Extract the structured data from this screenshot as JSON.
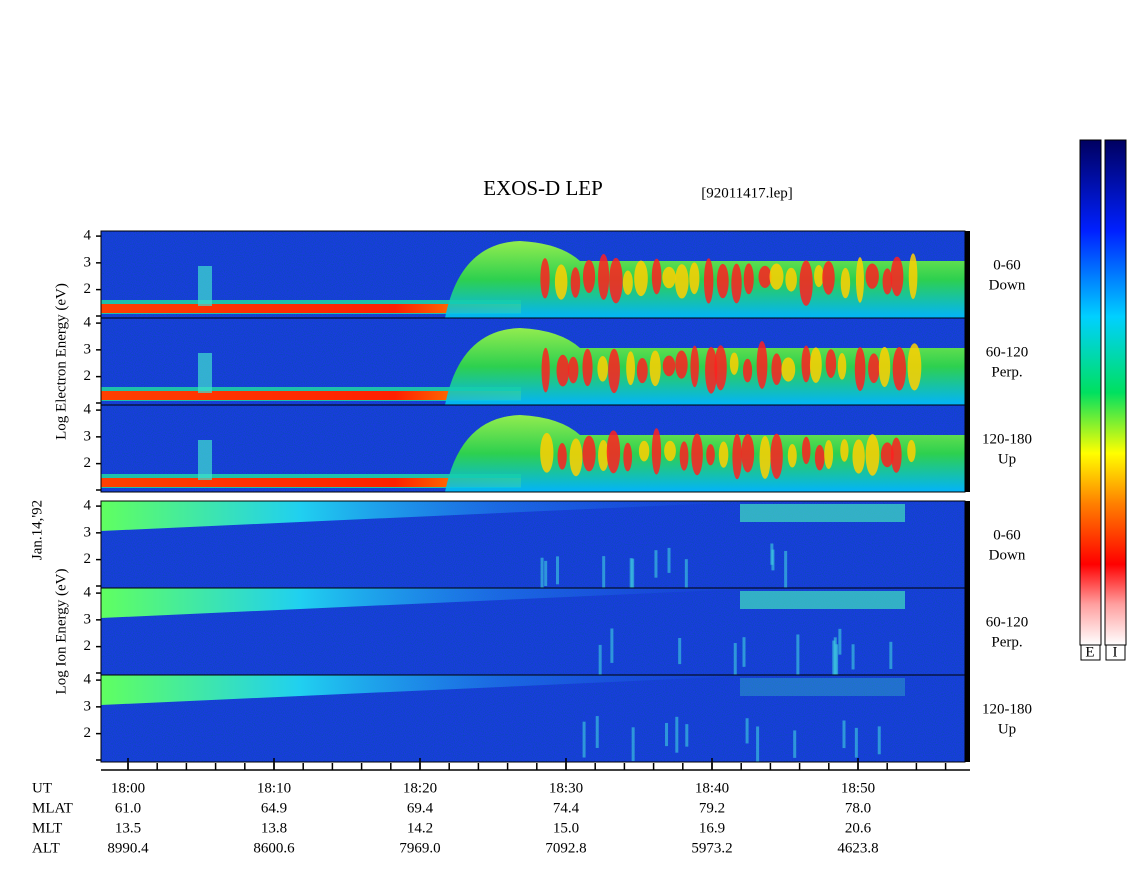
{
  "chart_data": {
    "type": "spectrogram",
    "title": "EXOS-D LEP",
    "subtitle": "[92011417.lep]",
    "date_label": "Jan.14,'92",
    "groups": [
      {
        "ylabel": "Log Electron Energy (eV)",
        "kind": "electron",
        "panels": [
          {
            "label": [
              "0-60",
              "Down"
            ]
          },
          {
            "label": [
              "60-120",
              "Perp."
            ]
          },
          {
            "label": [
              "120-180",
              "Up"
            ]
          }
        ]
      },
      {
        "ylabel": "Log Ion Energy (eV)",
        "kind": "ion",
        "panels": [
          {
            "label": [
              "0-60",
              "Down"
            ]
          },
          {
            "label": [
              "60-120",
              "Perp."
            ]
          },
          {
            "label": [
              "120-180",
              "Up"
            ]
          }
        ]
      }
    ],
    "ylim": [
      0.94,
      4.19
    ],
    "yticks": [
      2,
      3,
      4
    ],
    "x_label": "UT",
    "xticks": [
      "18:00",
      "18:10",
      "18:20",
      "18:30",
      "18:40",
      "18:50"
    ],
    "table": [
      {
        "name": "MLAT",
        "values": [
          "61.0",
          "64.9",
          "69.4",
          "74.4",
          "79.2",
          "78.0"
        ]
      },
      {
        "name": "MLT",
        "values": [
          "13.5",
          "13.8",
          "14.2",
          "15.0",
          "16.9",
          "20.6"
        ]
      },
      {
        "name": "ALT",
        "values": [
          "8990.4",
          "8600.6",
          "7969.0",
          "7092.8",
          "5973.2",
          "4623.8"
        ]
      }
    ],
    "colorbar_labels": [
      "E",
      "I"
    ]
  }
}
